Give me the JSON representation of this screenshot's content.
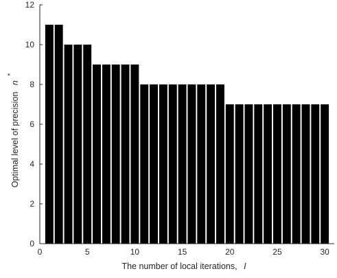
{
  "chart_data": {
    "type": "bar",
    "x": [
      1,
      2,
      3,
      4,
      5,
      6,
      7,
      8,
      9,
      10,
      11,
      12,
      13,
      14,
      15,
      16,
      17,
      18,
      19,
      20,
      21,
      22,
      23,
      24,
      25,
      26,
      27,
      28,
      29,
      30
    ],
    "values": [
      11,
      11,
      10,
      10,
      10,
      9,
      9,
      9,
      9,
      9,
      8,
      8,
      8,
      8,
      8,
      8,
      8,
      8,
      8,
      7,
      7,
      7,
      7,
      7,
      7,
      7,
      7,
      7,
      7,
      7
    ],
    "xlim": [
      0,
      31
    ],
    "ylim": [
      0,
      12
    ],
    "xticks": [
      0,
      5,
      10,
      15,
      20,
      25,
      30
    ],
    "yticks": [
      0,
      2,
      4,
      6,
      8,
      10,
      12
    ],
    "xlabel": "The number of local iterations,",
    "xlabel_var": "I",
    "ylabel": "Optimal level of precision",
    "ylabel_var": "n",
    "ylabel_sup": "*",
    "bar_color": "#000000",
    "grid": false
  }
}
